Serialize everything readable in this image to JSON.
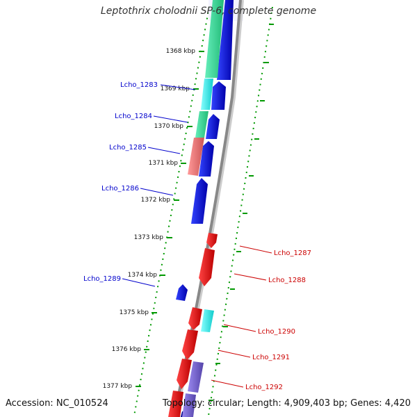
{
  "title": "Leptothrix cholodnii SP-6, complete genome",
  "footer": {
    "accession": "Accession: NC_010524",
    "summary": "Topology: circular; Length: 4,909,403 bp; Genes: 4,420"
  },
  "colors": {
    "forward_cds": "#0000dd",
    "reverse_cds": "#ee0000",
    "teal": "#33dd99",
    "cyan": "#22eeee",
    "salmon": "#ee7777",
    "slate": "#7766cc",
    "backbone": "#888888",
    "tick": "#009900",
    "forward_label": "#0000cc",
    "reverse_label": "#cc0000"
  },
  "ticks": [
    "1368 kbp",
    "1369 kbp",
    "1370 kbp",
    "1371 kbp",
    "1372 kbp",
    "1373 kbp",
    "1374 kbp",
    "1375 kbp",
    "1376 kbp",
    "1377 kbp"
  ],
  "forward_genes": [
    "Lcho_1283",
    "Lcho_1284",
    "Lcho_1285",
    "Lcho_1286",
    "Lcho_1289"
  ],
  "reverse_genes": [
    "Lcho_1287",
    "Lcho_1288",
    "Lcho_1290",
    "Lcho_1291",
    "Lcho_1292"
  ]
}
